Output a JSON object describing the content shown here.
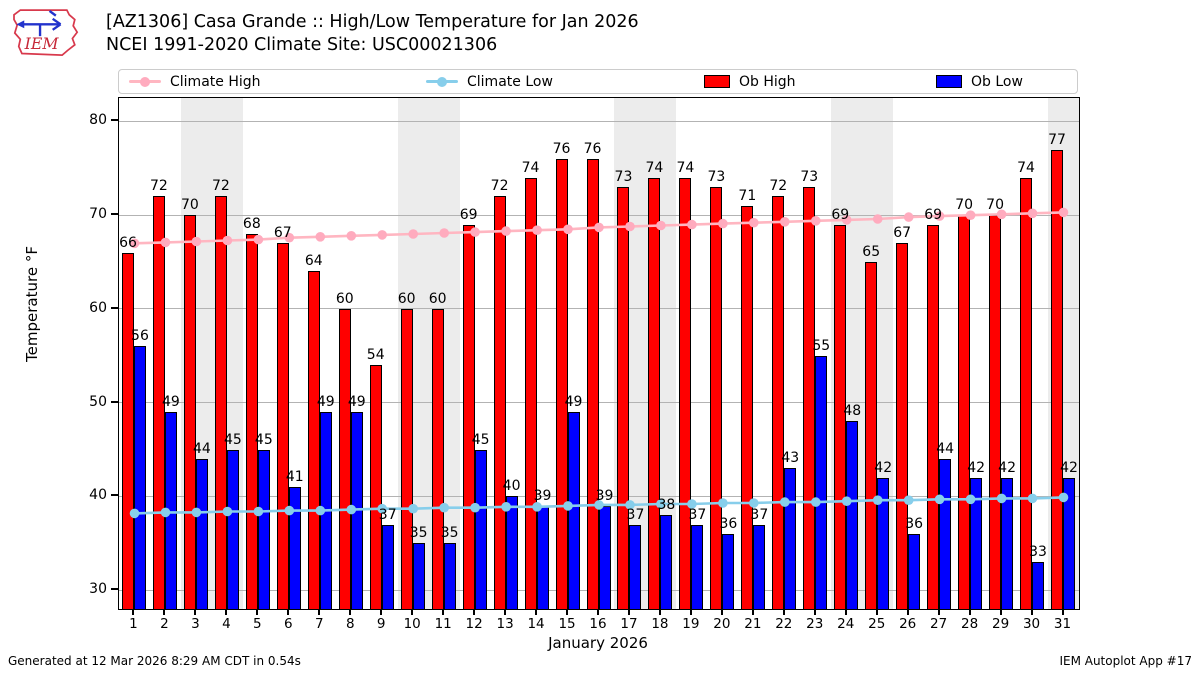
{
  "header": {
    "title_line1": "[AZ1306] Casa Grande :: High/Low Temperature for Jan 2026",
    "title_line2": "NCEI 1991-2020 Climate Site: USC00021306",
    "logo_text": "IEM"
  },
  "legend": {
    "climate_high": "Climate High",
    "climate_low": "Climate Low",
    "ob_high": "Ob High",
    "ob_low": "Ob Low"
  },
  "chart_data": {
    "type": "bar",
    "title": "[AZ1306] Casa Grande :: High/Low Temperature for Jan 2026",
    "subtitle": "NCEI 1991-2020 Climate Site: USC00021306",
    "xlabel": "January 2026",
    "ylabel": "Temperature °F",
    "ylim": [
      28,
      82.5
    ],
    "yticks": [
      30,
      40,
      50,
      60,
      70,
      80
    ],
    "grid": true,
    "legend_position": "top",
    "x": [
      1,
      2,
      3,
      4,
      5,
      6,
      7,
      8,
      9,
      10,
      11,
      12,
      13,
      14,
      15,
      16,
      17,
      18,
      19,
      20,
      21,
      22,
      23,
      24,
      25,
      26,
      27,
      28,
      29,
      30,
      31
    ],
    "series": [
      {
        "name": "Ob High",
        "type": "bar",
        "color": "#ff0000",
        "values": [
          66,
          72,
          70,
          72,
          68,
          67,
          64,
          60,
          54,
          60,
          60,
          69,
          72,
          74,
          76,
          76,
          73,
          74,
          74,
          73,
          71,
          72,
          73,
          69,
          65,
          67,
          69,
          70,
          70,
          74,
          77
        ]
      },
      {
        "name": "Ob Low",
        "type": "bar",
        "color": "#0000ff",
        "values": [
          56,
          49,
          44,
          45,
          45,
          41,
          49,
          49,
          37,
          35,
          35,
          45,
          40,
          39,
          49,
          39,
          37,
          38,
          37,
          36,
          37,
          43,
          55,
          48,
          42,
          36,
          44,
          42,
          42,
          33,
          42
        ]
      },
      {
        "name": "Climate High",
        "type": "line",
        "color": "#ffb6c1",
        "marker_color": "#ffabbe",
        "values": [
          67.0,
          67.1,
          67.2,
          67.3,
          67.4,
          67.6,
          67.7,
          67.8,
          67.9,
          68.0,
          68.1,
          68.2,
          68.3,
          68.4,
          68.5,
          68.7,
          68.8,
          68.9,
          69.0,
          69.1,
          69.2,
          69.3,
          69.4,
          69.5,
          69.6,
          69.8,
          69.9,
          70.0,
          70.1,
          70.2,
          70.3
        ]
      },
      {
        "name": "Climate Low",
        "type": "line",
        "color": "#87ceeb",
        "marker_color": "#87ceeb",
        "values": [
          38.2,
          38.3,
          38.3,
          38.4,
          38.4,
          38.5,
          38.5,
          38.6,
          38.7,
          38.7,
          38.8,
          38.8,
          38.9,
          38.9,
          39.0,
          39.1,
          39.1,
          39.2,
          39.2,
          39.3,
          39.3,
          39.4,
          39.4,
          39.5,
          39.6,
          39.6,
          39.7,
          39.7,
          39.8,
          39.8,
          39.9
        ]
      }
    ],
    "weekend_bands": [
      [
        3,
        4
      ],
      [
        10,
        11
      ],
      [
        17,
        18
      ],
      [
        24,
        25
      ],
      [
        31,
        31
      ]
    ],
    "band_color": "#ececec",
    "grid_color": "#b3b3b3"
  },
  "footer": {
    "left": "Generated at 12 Mar 2026 8:29 AM CDT in 0.54s",
    "right": "IEM Autoplot App #17"
  }
}
